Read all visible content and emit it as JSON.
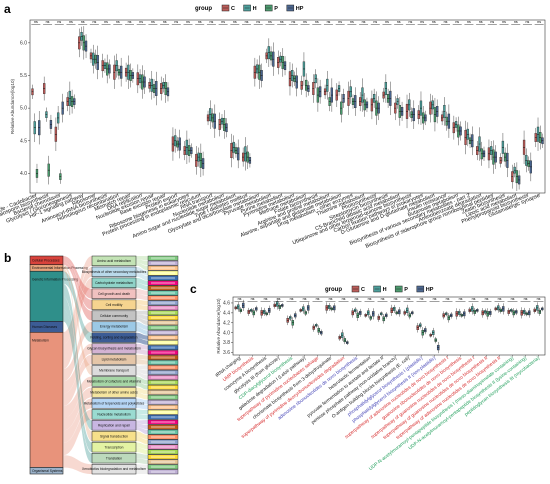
{
  "colors": {
    "C": "#b0413e",
    "H": "#2f8f8a",
    "P": "#2e8b57",
    "HP": "#2f4f7f",
    "red": "#d62728",
    "green": "#1f9e5a",
    "blue": "#3b3bb3",
    "black": "#111111"
  },
  "panels": {
    "a": "a",
    "b": "b",
    "c": "c"
  },
  "legend": {
    "title": "group",
    "items": [
      {
        "key": "C",
        "label": "C"
      },
      {
        "key": "H",
        "label": "H"
      },
      {
        "key": "P",
        "label": "P"
      },
      {
        "key": "HP",
        "label": "HP"
      }
    ]
  },
  "chart_data": [
    {
      "panel": "a",
      "type": "box",
      "ylabel": "Relative Abundance(log10)",
      "ylim": [
        3.7,
        6.35
      ],
      "yticks": [
        4.0,
        4.5,
        5.0,
        5.5,
        6.0
      ],
      "ytick_labels": [
        "4.0",
        "4.5",
        "5.0",
        "5.5",
        "6.0"
      ],
      "groups": [
        "C",
        "H",
        "P",
        "HP"
      ],
      "significance_marker": "ns",
      "grid": false,
      "legend_position": "top",
      "categories": [
        "Cell cycle - Caulobacter",
        "Penicillin and cephalosporin biosynthesis",
        "Bacterial chemotaxis",
        "Glycolysis / Gluconeogenesis",
        "HIF-1 signaling pathway",
        "Ribosome",
        "Aminoacyl-tRNA biosynthesis",
        "Homologous recombination",
        "Mismatch repair",
        "DNA replication",
        "Nucleotide excision repair",
        "Base excision repair",
        "Protein export",
        "Ribosome biogenesis in eukaryotes",
        "Protein processing in endoplasmic reticulum",
        "RNA transport",
        "Nucleotide metabolism",
        "Amino sugar and nucleotide sugar metabolism",
        "Type I diabetes mellitus",
        "Glyoxylate and dicarboxylate metabolism",
        "Pyruvate metabolism",
        "Purine metabolism",
        "Pyrimidine metabolism",
        "Methane metabolism",
        "Folate biosynthesis",
        "Arginine and proline metabolism",
        "Alanine, aspartate and glutamate metabolism",
        "Drug metabolism - other enzymes",
        "Thiamine metabolism",
        "Photosynthesis",
        "Streptomycin biosynthesis",
        "C5-Branched dibasic acid metabolism",
        "Ubiquinone and other terpenoid-quinone biosynthesis",
        "Carbon fixation pathways in prokaryotes",
        "D-Glutamine and D-glutamate metabolism",
        "Insulin resistance",
        "Butanoate metabolism",
        "Biosynthesis of various secondary metabolites - part 2",
        "Aminobenzoate degradation",
        "Biosynthesis of siderophore group nonribosomal peptides",
        "Zeatin biosynthesis",
        "Lipoic acid metabolism",
        "Phenylpropanoid biosynthesis",
        "Glutamatergic synapse"
      ],
      "medians": [
        [
          5.25,
          4.7,
          4.0,
          4.7
        ],
        [
          5.3,
          4.9,
          4.05,
          4.75
        ],
        [
          4.6,
          4.85,
          3.95,
          5.0
        ],
        [
          5.1,
          5.15,
          5.1,
          5.1
        ],
        [
          6.0,
          6.1,
          6.0,
          5.95
        ],
        [
          5.8,
          5.75,
          5.75,
          5.7
        ],
        [
          5.65,
          5.65,
          5.6,
          5.6
        ],
        [
          5.55,
          5.65,
          5.55,
          5.55
        ],
        [
          5.55,
          5.55,
          5.5,
          5.5
        ],
        [
          5.45,
          5.45,
          5.4,
          5.4
        ],
        [
          5.35,
          5.35,
          5.3,
          5.3
        ],
        [
          5.3,
          5.35,
          5.3,
          5.25
        ],
        [
          4.45,
          4.5,
          4.45,
          4.45
        ],
        [
          4.35,
          4.4,
          4.35,
          4.35
        ],
        [
          4.2,
          4.25,
          4.2,
          4.15
        ],
        [
          4.85,
          4.9,
          4.85,
          4.8
        ],
        [
          4.75,
          4.8,
          4.75,
          4.7
        ],
        [
          4.35,
          4.4,
          4.35,
          4.3
        ],
        [
          4.25,
          4.3,
          4.25,
          4.2
        ],
        [
          5.55,
          5.6,
          5.55,
          5.5
        ],
        [
          5.8,
          5.85,
          5.8,
          5.75
        ],
        [
          5.7,
          5.75,
          5.7,
          5.65
        ],
        [
          5.45,
          5.5,
          5.45,
          5.4
        ],
        [
          5.35,
          5.6,
          5.35,
          5.3
        ],
        [
          5.3,
          5.45,
          5.2,
          5.25
        ],
        [
          5.25,
          5.35,
          5.1,
          5.2
        ],
        [
          5.2,
          5.3,
          5.0,
          5.15
        ],
        [
          5.15,
          5.25,
          5.1,
          5.1
        ],
        [
          5.1,
          5.2,
          5.05,
          5.05
        ],
        [
          5.05,
          5.15,
          5.0,
          5.0
        ],
        [
          5.2,
          5.3,
          5.15,
          5.15
        ],
        [
          5.0,
          5.1,
          4.95,
          4.95
        ],
        [
          4.95,
          5.05,
          4.9,
          4.9
        ],
        [
          4.9,
          5.0,
          4.85,
          4.85
        ],
        [
          5.0,
          5.05,
          4.9,
          4.95
        ],
        [
          4.85,
          4.95,
          4.8,
          4.8
        ],
        [
          4.7,
          4.75,
          4.65,
          4.65
        ],
        [
          4.55,
          4.6,
          4.5,
          4.5
        ],
        [
          4.35,
          4.45,
          4.3,
          4.3
        ],
        [
          4.3,
          4.35,
          4.25,
          4.25
        ],
        [
          4.2,
          4.4,
          4.25,
          4.2
        ],
        [
          3.95,
          4.05,
          3.95,
          3.9
        ],
        [
          4.4,
          4.2,
          4.15,
          4.1
        ],
        [
          4.55,
          4.6,
          4.55,
          4.5
        ]
      ]
    },
    {
      "panel": "c",
      "type": "box",
      "ylabel": "Relative Abundance(log10)",
      "ylim": [
        3.55,
        4.72
      ],
      "yticks": [
        3.6,
        3.8,
        4.0,
        4.2,
        4.4,
        4.6
      ],
      "ytick_labels": [
        "3.6",
        "3.8",
        "4.0",
        "4.2",
        "4.4",
        "4.6"
      ],
      "groups": [
        "C",
        "H",
        "P",
        "HP"
      ],
      "significance_marker": "ns",
      "grid": false,
      "legend_position": "top",
      "categories": [
        "tRNA charging",
        "UMP biosynthesis",
        "coenzyme A biosynthesis",
        "glycolysis III (from glucose)",
        "CDP-diacylglycerol biosynthesis",
        "galactose degradation I (Leloir pathway)",
        "superpathway of pyrimidine nucleobases salvage",
        "chorismate biosynthesis from 3-dehydroquinate",
        "superpathway of pyrimidine deoxyribonucleosides degradation",
        "adenosine ribonucleotides de novo biosynthesis",
        "heterolactic fermentation",
        "pyruvate fermentation to acetate and lactate II",
        "pentose phosphate pathway (non-oxidative branch)",
        "O-antigen building blocks biosynthesis (E. coli)",
        "phosphatidylglycerol biosynthesis I (plastidic)",
        "phosphatidylglycerol biosynthesis II (non-plastidic)",
        "superpathway of adenosine nucleotides de novo biosynthesis I",
        "guanosine ribonucleotides de novo biosynthesis",
        "superpathway of guanosine nucleotides de novo biosynthesis I",
        "superpathway of guanosine nucleotides de novo biosynthesis II",
        "superpathway of adenosine nucleotides de novo biosynthesis II",
        "UDP-N-acetylmuramoyl-pentapeptide biosynthesis I (meso-diaminopimelate containing)",
        "UDP-N-acetylmuramoyl-pentapeptide biosynthesis II (lysine-containing)",
        "peptidoglycan biosynthesis III (mycobacteria)"
      ],
      "label_colors": [
        "black",
        "red",
        "black",
        "black",
        "green",
        "black",
        "red",
        "black",
        "red",
        "blue",
        "black",
        "black",
        "black",
        "black",
        "blue",
        "blue",
        "red",
        "red",
        "red",
        "red",
        "red",
        "green",
        "green",
        "green"
      ],
      "medians": [
        [
          4.5,
          4.52,
          4.45,
          4.55
        ],
        [
          4.42,
          4.45,
          4.4,
          4.48
        ],
        [
          4.4,
          4.42,
          4.38,
          4.45
        ],
        [
          4.55,
          4.58,
          4.52,
          4.55
        ],
        [
          4.25,
          4.3,
          4.2,
          4.35
        ],
        [
          4.45,
          4.48,
          4.4,
          4.5
        ],
        [
          4.1,
          4.15,
          4.05,
          4.0
        ],
        [
          4.5,
          4.52,
          4.48,
          4.5
        ],
        [
          3.9,
          3.95,
          3.85,
          3.8
        ],
        [
          4.4,
          4.45,
          4.35,
          4.4
        ],
        [
          4.35,
          4.4,
          4.3,
          4.38
        ],
        [
          4.3,
          4.38,
          4.28,
          4.35
        ],
        [
          4.45,
          4.48,
          4.4,
          4.42
        ],
        [
          4.4,
          4.45,
          4.35,
          4.4
        ],
        [
          4.1,
          4.15,
          4.0,
          4.05
        ],
        [
          3.95,
          4.0,
          3.85,
          3.7
        ],
        [
          4.35,
          4.38,
          4.3,
          4.35
        ],
        [
          4.38,
          4.4,
          4.35,
          4.38
        ],
        [
          4.45,
          4.48,
          4.42,
          4.45
        ],
        [
          4.4,
          4.42,
          4.38,
          4.4
        ],
        [
          4.48,
          4.5,
          4.45,
          4.48
        ],
        [
          4.42,
          4.45,
          4.4,
          4.42
        ],
        [
          4.4,
          4.42,
          4.38,
          4.4
        ],
        [
          4.45,
          4.5,
          4.42,
          4.48
        ]
      ]
    },
    {
      "panel": "b",
      "type": "sankey",
      "level1": [
        {
          "label": "Cellular Processes",
          "weight": 0.04,
          "color": "#d9433c"
        },
        {
          "label": "Environmental Information Processing",
          "weight": 0.03,
          "color": "#e7a37c"
        },
        {
          "label": "Genetic Information Processing",
          "weight": 0.23,
          "color": "#2f8f8a"
        },
        {
          "label": "Human Diseases",
          "weight": 0.05,
          "color": "#3c5c95"
        },
        {
          "label": "Metabolism",
          "weight": 0.62,
          "color": "#e8937b"
        },
        {
          "label": "Organismal Systems",
          "weight": 0.03,
          "color": "#9ab1c9"
        }
      ],
      "level2": [
        {
          "label": "Amino acid metabolism",
          "color": "#c3e3b5"
        },
        {
          "label": "Biosynthesis of other secondary metabolites",
          "color": "#b9d9ea"
        },
        {
          "label": "Carbohydrate metabolism",
          "color": "#8fd3c8"
        },
        {
          "label": "Cell growth and death",
          "color": "#f1c1c0"
        },
        {
          "label": "Cell motility",
          "color": "#f6d48f"
        },
        {
          "label": "Cellular community",
          "color": "#c3c3c3"
        },
        {
          "label": "Energy metabolism",
          "color": "#9cc9e6"
        },
        {
          "label": "Folding, sorting and degradation",
          "color": "#3c5c95"
        },
        {
          "label": "Glycan biosynthesis and metabolism",
          "color": "#d3b3d3"
        },
        {
          "label": "Lipid metabolism",
          "color": "#e5c6a8"
        },
        {
          "label": "Membrane transport",
          "color": "#dcdcdc"
        },
        {
          "label": "Metabolism of cofactors and vitamins",
          "color": "#a6d6a6"
        },
        {
          "label": "Metabolism of other amino acids",
          "color": "#f5e5a0"
        },
        {
          "label": "Metabolism of terpenoids and polyketides",
          "color": "#b5d5f5"
        },
        {
          "label": "Nucleotide metabolism",
          "color": "#9adbd1"
        },
        {
          "label": "Replication and repair",
          "color": "#c8b6e2"
        },
        {
          "label": "Signal transduction",
          "color": "#f7e08a"
        },
        {
          "label": "Transcription",
          "color": "#e3f3a3"
        },
        {
          "label": "Translation",
          "color": "#bcd9bc"
        },
        {
          "label": "Xenobiotics biodegradation and metabolism",
          "color": "#e1e1e1"
        }
      ],
      "level3_count": 44
    }
  ]
}
